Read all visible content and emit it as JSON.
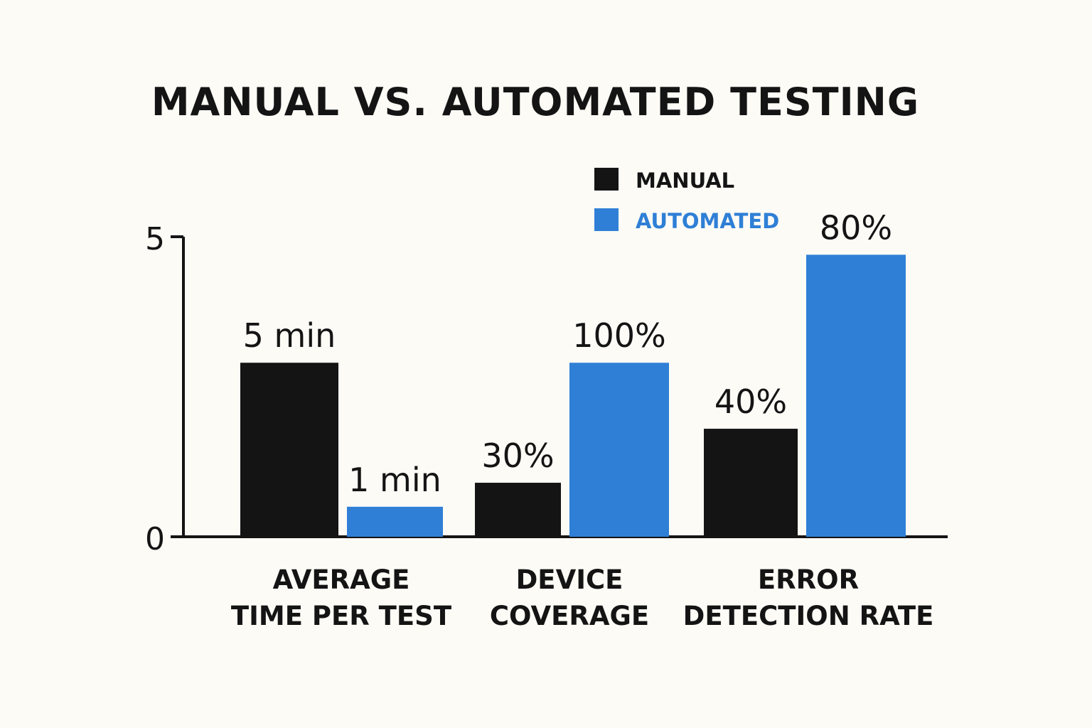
{
  "chart_data": {
    "type": "bar",
    "title": "MANUAL VS. AUTOMATED TESTING",
    "xlabel": "",
    "ylabel": "",
    "categories": [
      [
        "AVERAGE",
        "TIME PER TEST"
      ],
      [
        "DEVICE",
        "COVERAGE"
      ],
      [
        "ERROR",
        "DETECTION RATE"
      ]
    ],
    "series": [
      {
        "name": "MANUAL",
        "color": "#141414",
        "values": [
          2.9,
          0.9,
          1.8
        ],
        "labels": [
          "5 min",
          "30%",
          "40%"
        ]
      },
      {
        "name": "AUTOMATED",
        "color": "#2f7fd6",
        "values": [
          0.5,
          2.9,
          4.7
        ],
        "labels": [
          "1 min",
          "100%",
          "80%"
        ]
      }
    ],
    "ylim": [
      0,
      5
    ],
    "yticks": [
      "0",
      "5"
    ],
    "legend_position": "top-right",
    "grid": false
  }
}
